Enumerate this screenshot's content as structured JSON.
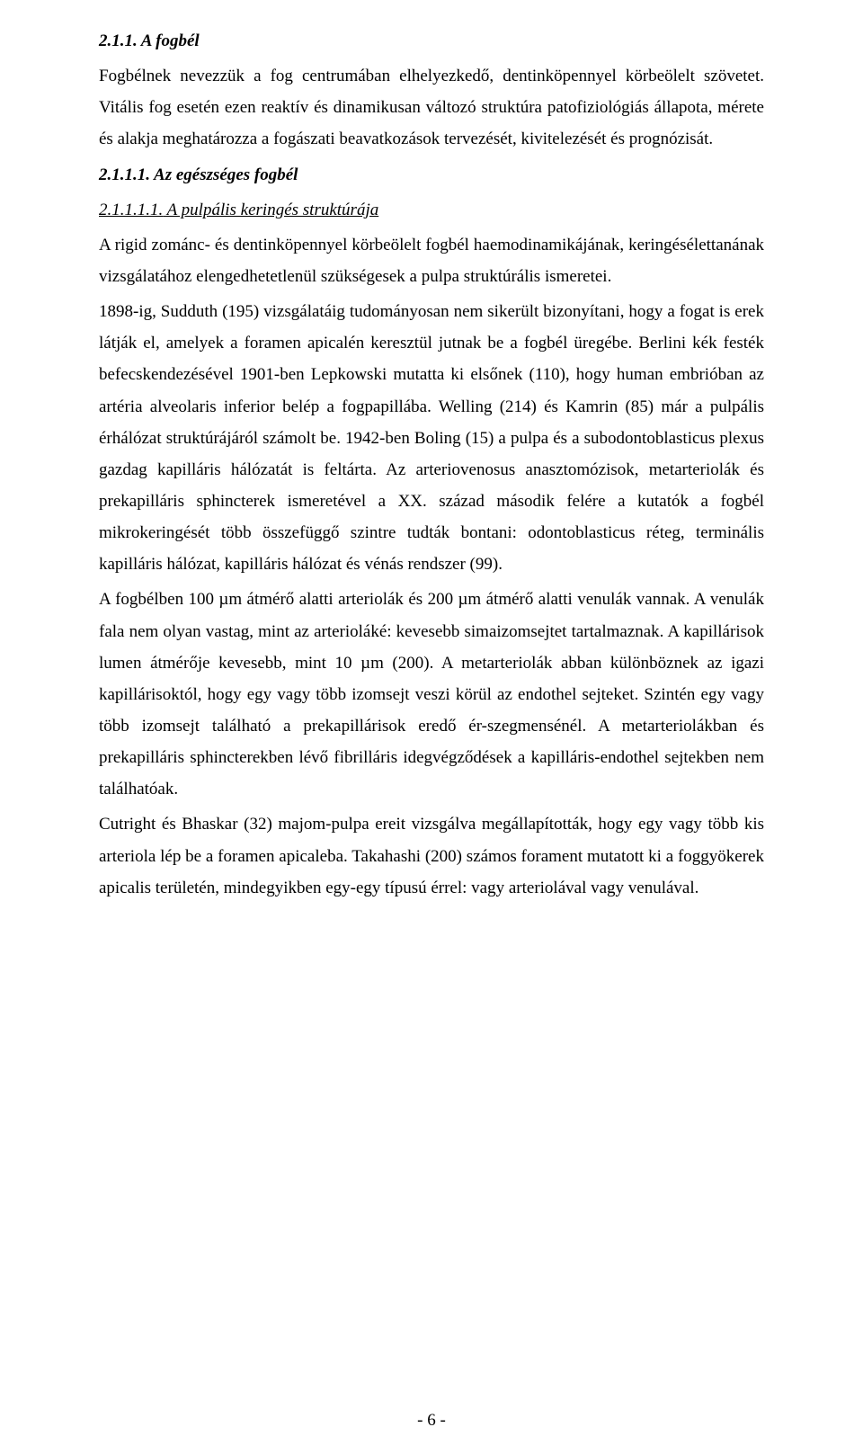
{
  "heading1": "2.1.1. A fogbél",
  "para1": "Fogbélnek nevezzük a fog centrumában elhelyezkedő, dentinköpennyel körbeölelt szövetet. Vitális fog esetén ezen reaktív és dinamikusan változó struktúra patofiziológiás állapota, mérete és alakja meghatározza a fogászati beavatkozások tervezését, kivitelezését és prognózisát.",
  "heading2": "2.1.1.1. Az egészséges fogbél",
  "heading3_prefix": "2.1.1.1.1.",
  "heading3_text": " A pulpális keringés struktúrája",
  "para2": "A rigid zománc- és dentinköpennyel körbeölelt fogbél haemodinamikájának, keringésélettanának vizsgálatához elengedhetetlenül szükségesek a pulpa struktúrális ismeretei.",
  "para3": "1898-ig, Sudduth (195) vizsgálatáig tudományosan nem sikerült bizonyítani, hogy a fogat is erek látják el, amelyek a foramen apicalén keresztül jutnak be a fogbél üregébe. Berlini kék festék befecskendezésével 1901-ben Lepkowski mutatta ki elsőnek (110), hogy human embrióban az artéria alveolaris inferior belép a fogpapillába. Welling (214) és Kamrin (85) már a pulpális érhálózat struktúrájáról számolt be. 1942-ben Boling (15) a pulpa és a subodontoblasticus plexus gazdag kapilláris hálózatát is feltárta. Az arteriovenosus anasztomózisok, metarteriolák és prekapilláris sphincterek ismeretével a XX. század második felére a kutatók a fogbél mikrokeringését több összefüggő szintre tudták bontani: odontoblasticus réteg, terminális kapilláris hálózat, kapilláris hálózat és vénás rendszer (99).",
  "para4": "A fogbélben 100 µm átmérő alatti arteriolák és 200 µm átmérő alatti venulák vannak. A venulák fala nem olyan vastag, mint az arterioláké: kevesebb simaizomsejtet tartalmaznak. A kapillárisok lumen átmérője kevesebb, mint 10 µm (200). A metarteriolák abban különböznek az igazi kapillárisoktól, hogy egy vagy több izomsejt veszi körül az endothel sejteket. Szintén egy vagy több izomsejt található a prekapillárisok eredő ér-szegmensénél. A metarteriolákban és prekapilláris sphincterekben lévő fibrilláris idegvégződések a kapilláris-endothel sejtekben nem találhatóak.",
  "para5": "Cutright és Bhaskar (32) majom-pulpa ereit vizsgálva megállapították, hogy egy vagy több kis arteriola lép be a foramen apicaleba. Takahashi (200) számos forament mutatott ki a foggyökerek apicalis területén, mindegyikben egy-egy típusú érrel: vagy arteriolával vagy venulával.",
  "pagenum": "- 6 -"
}
